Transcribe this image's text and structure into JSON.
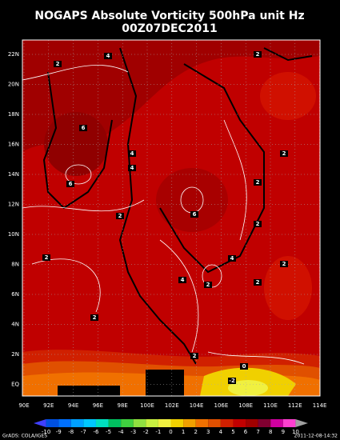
{
  "title": "NOGAPS Absolute Vorticity 500hPa unit Hz",
  "subtitle": "00Z07DEC2011",
  "lat_labels": [
    "22N",
    "20N",
    "18N",
    "16N",
    "14N",
    "12N",
    "10N",
    "8N",
    "6N",
    "4N",
    "2N",
    "EQ"
  ],
  "lon_labels": [
    "90E",
    "92E",
    "94E",
    "96E",
    "98E",
    "100E",
    "102E",
    "104E",
    "106E",
    "108E",
    "110E",
    "112E",
    "114E"
  ],
  "colorbar": {
    "labels": [
      "-10",
      "-9",
      "-8",
      "-7",
      "-6",
      "-5",
      "-4",
      "-3",
      "-2",
      "-1",
      "0",
      "1",
      "2",
      "3",
      "4",
      "5",
      "6",
      "7",
      "8",
      "9",
      "10"
    ],
    "colors": [
      "#4040ff",
      "#0050e0",
      "#0070ff",
      "#00a0ff",
      "#00c8ff",
      "#00e0c0",
      "#00c060",
      "#40d040",
      "#90e040",
      "#c8f040",
      "#f0f040",
      "#f0d000",
      "#f0a000",
      "#f07000",
      "#e05000",
      "#d02000",
      "#c00000",
      "#a00000",
      "#800030",
      "#d000a0",
      "#ff40d0",
      "#a0a0a0"
    ]
  },
  "contour_labels": [
    "4",
    "2",
    "2",
    "2",
    "6",
    "4",
    "4",
    "6",
    "2",
    "2",
    "6",
    "2",
    "2",
    "4",
    "2",
    "4",
    "2",
    "2",
    "2",
    "2",
    "0",
    "-2"
  ],
  "footer_left": "GrADS: COLA/IGES",
  "footer_right": "2011-12-08-14:32"
}
